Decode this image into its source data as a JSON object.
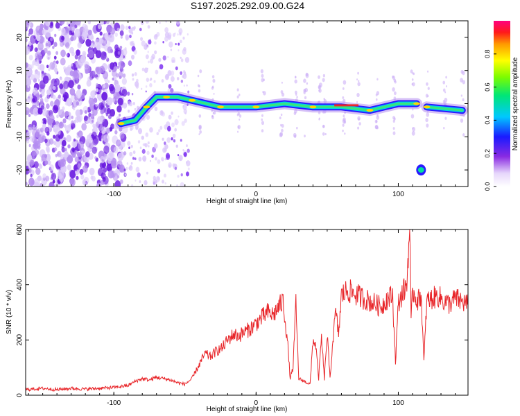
{
  "title": "S197.2025.292.09.00.G24",
  "colors": {
    "snr_line": "#e8262a",
    "track_core": "#e8262a",
    "noise": "#7a2cf0"
  },
  "chart_data": [
    {
      "type": "heatmap",
      "name": "spectrogram",
      "xlabel": "Height of straight line (km)",
      "ylabel": "Frequency (Hz)",
      "xlim": [
        -162,
        149
      ],
      "ylim": [
        -25,
        25
      ],
      "xticks": [
        -100,
        0,
        100
      ],
      "yticks": [
        20,
        10,
        0,
        -10,
        -20
      ],
      "colorbar": {
        "label": "Normalized spectral amplitude",
        "range": [
          0,
          1
        ],
        "ticks": [
          0.0,
          0.2,
          0.4,
          0.6,
          0.8
        ]
      },
      "track": [
        {
          "x": -95,
          "f": -6
        },
        {
          "x": -85,
          "f": -5
        },
        {
          "x": -77,
          "f": -1
        },
        {
          "x": -70,
          "f": 2
        },
        {
          "x": -63,
          "f": 2
        },
        {
          "x": -55,
          "f": 2
        },
        {
          "x": -45,
          "f": 1
        },
        {
          "x": -35,
          "f": 0
        },
        {
          "x": -25,
          "f": -1
        },
        {
          "x": -15,
          "f": -1
        },
        {
          "x": 0,
          "f": -1
        },
        {
          "x": 20,
          "f": 0
        },
        {
          "x": 40,
          "f": -1
        },
        {
          "x": 60,
          "f": -1
        },
        {
          "x": 80,
          "f": -2
        },
        {
          "x": 100,
          "f": 0
        },
        {
          "x": 113,
          "f": 0
        }
      ],
      "track2": [
        {
          "x": 120,
          "f": -1
        },
        {
          "x": 145,
          "f": -2
        }
      ],
      "blob": {
        "x": 116,
        "f": -20
      }
    },
    {
      "type": "line",
      "name": "snr",
      "xlabel": "Height of straight line (km)",
      "ylabel": "SNR (10 * v/v)",
      "xlim": [
        -162,
        149
      ],
      "ylim": [
        0,
        600
      ],
      "xticks": [
        -100,
        0,
        100
      ],
      "yticks": [
        0,
        200,
        400,
        600
      ],
      "series": [
        {
          "name": "SNR",
          "x": [
            -162,
            -150,
            -140,
            -130,
            -120,
            -110,
            -100,
            -90,
            -85,
            -80,
            -75,
            -70,
            -65,
            -60,
            -55,
            -50,
            -45,
            -40,
            -36,
            -32,
            -28,
            -24,
            -20,
            -16,
            -12,
            -8,
            -4,
            0,
            4,
            8,
            12,
            16,
            19,
            22,
            24,
            26,
            28,
            30,
            34,
            38,
            40,
            42,
            44,
            46,
            48,
            50,
            52,
            54,
            56,
            58,
            60,
            64,
            68,
            72,
            76,
            80,
            84,
            88,
            92,
            96,
            98,
            100,
            102,
            104,
            106,
            107,
            108,
            109,
            110,
            112,
            114,
            116,
            118,
            120,
            124,
            128,
            132,
            136,
            140,
            144,
            149
          ],
          "y": [
            20,
            25,
            20,
            25,
            22,
            25,
            28,
            35,
            50,
            60,
            55,
            65,
            60,
            55,
            45,
            40,
            60,
            110,
            150,
            140,
            160,
            170,
            200,
            220,
            215,
            230,
            240,
            260,
            280,
            300,
            290,
            320,
            340,
            200,
            60,
            100,
            330,
            60,
            50,
            40,
            200,
            180,
            60,
            210,
            60,
            220,
            60,
            200,
            300,
            220,
            360,
            380,
            370,
            360,
            350,
            340,
            330,
            320,
            350,
            360,
            120,
            330,
            360,
            380,
            400,
            520,
            600,
            250,
            380,
            360,
            340,
            370,
            120,
            340,
            350,
            360,
            340,
            330,
            350,
            340,
            330
          ]
        }
      ]
    }
  ]
}
